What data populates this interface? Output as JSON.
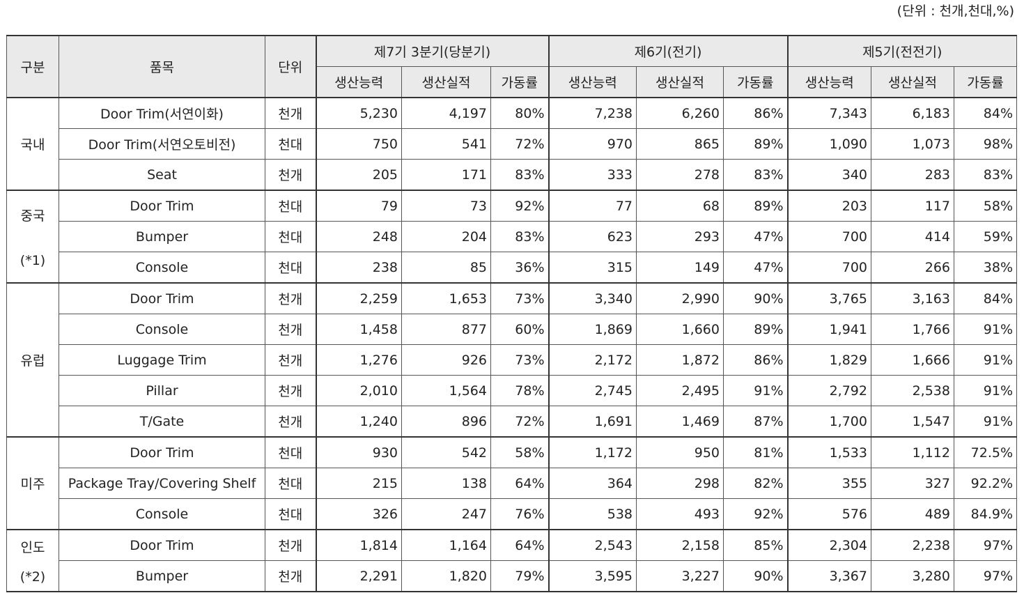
{
  "unit_note": "(단위 : 천개,천대,%)",
  "header": {
    "category": "구분",
    "item": "품목",
    "unit": "단위",
    "periods": [
      "제7기 3분기(당분기)",
      "제6기(전기)",
      "제5기(전전기)"
    ],
    "metrics": [
      "생산능력",
      "생산실적",
      "가동률"
    ]
  },
  "groups": [
    {
      "region_lines": [
        "국내"
      ],
      "rows": [
        {
          "item": "Door Trim(서연이화)",
          "unit": "천개",
          "p7": [
            "5,230",
            "4,197",
            "80%"
          ],
          "p6": [
            "7,238",
            "6,260",
            "86%"
          ],
          "p5": [
            "7,343",
            "6,183",
            "84%"
          ]
        },
        {
          "item": "Door Trim(서연오토비전)",
          "unit": "천대",
          "p7": [
            "750",
            "541",
            "72%"
          ],
          "p6": [
            "970",
            "865",
            "89%"
          ],
          "p5": [
            "1,090",
            "1,073",
            "98%"
          ]
        },
        {
          "item": "Seat",
          "unit": "천개",
          "p7": [
            "205",
            "171",
            "83%"
          ],
          "p6": [
            "333",
            "278",
            "83%"
          ],
          "p5": [
            "340",
            "283",
            "83%"
          ]
        }
      ]
    },
    {
      "region_lines": [
        "중국",
        "(*1)"
      ],
      "rows": [
        {
          "item": "Door Trim",
          "unit": "천대",
          "p7": [
            "79",
            "73",
            "92%"
          ],
          "p6": [
            "77",
            "68",
            "89%"
          ],
          "p5": [
            "203",
            "117",
            "58%"
          ]
        },
        {
          "item": "Bumper",
          "unit": "천대",
          "p7": [
            "248",
            "204",
            "83%"
          ],
          "p6": [
            "623",
            "293",
            "47%"
          ],
          "p5": [
            "700",
            "414",
            "59%"
          ]
        },
        {
          "item": "Console",
          "unit": "천대",
          "p7": [
            "238",
            "85",
            "36%"
          ],
          "p6": [
            "315",
            "149",
            "47%"
          ],
          "p5": [
            "700",
            "266",
            "38%"
          ]
        }
      ]
    },
    {
      "region_lines": [
        "유럽"
      ],
      "rows": [
        {
          "item": "Door Trim",
          "unit": "천개",
          "p7": [
            "2,259",
            "1,653",
            "73%"
          ],
          "p6": [
            "3,340",
            "2,990",
            "90%"
          ],
          "p5": [
            "3,765",
            "3,163",
            "84%"
          ]
        },
        {
          "item": "Console",
          "unit": "천개",
          "p7": [
            "1,458",
            "877",
            "60%"
          ],
          "p6": [
            "1,869",
            "1,660",
            "89%"
          ],
          "p5": [
            "1,941",
            "1,766",
            "91%"
          ]
        },
        {
          "item": "Luggage Trim",
          "unit": "천개",
          "p7": [
            "1,276",
            "926",
            "73%"
          ],
          "p6": [
            "2,172",
            "1,872",
            "86%"
          ],
          "p5": [
            "1,829",
            "1,666",
            "91%"
          ]
        },
        {
          "item": "Pillar",
          "unit": "천개",
          "p7": [
            "2,010",
            "1,564",
            "78%"
          ],
          "p6": [
            "2,745",
            "2,495",
            "91%"
          ],
          "p5": [
            "2,792",
            "2,538",
            "91%"
          ]
        },
        {
          "item": "T/Gate",
          "unit": "천개",
          "p7": [
            "1,240",
            "896",
            "72%"
          ],
          "p6": [
            "1,691",
            "1,469",
            "87%"
          ],
          "p5": [
            "1,700",
            "1,547",
            "91%"
          ]
        }
      ]
    },
    {
      "region_lines": [
        "미주"
      ],
      "rows": [
        {
          "item": "Door Trim",
          "unit": "천대",
          "p7": [
            "930",
            "542",
            "58%"
          ],
          "p6": [
            "1,172",
            "950",
            "81%"
          ],
          "p5": [
            "1,533",
            "1,112",
            "72.5%"
          ]
        },
        {
          "item": "Package Tray/Covering Shelf",
          "unit": "천대",
          "p7": [
            "215",
            "138",
            "64%"
          ],
          "p6": [
            "364",
            "298",
            "82%"
          ],
          "p5": [
            "355",
            "327",
            "92.2%"
          ]
        },
        {
          "item": "Console",
          "unit": "천대",
          "p7": [
            "326",
            "247",
            "76%"
          ],
          "p6": [
            "538",
            "493",
            "92%"
          ],
          "p5": [
            "576",
            "489",
            "84.9%"
          ]
        }
      ]
    },
    {
      "region_lines": [
        "인도",
        "(*2)"
      ],
      "rows": [
        {
          "item": "Door Trim",
          "unit": "천개",
          "p7": [
            "1,814",
            "1,164",
            "64%"
          ],
          "p6": [
            "2,543",
            "2,158",
            "85%"
          ],
          "p5": [
            "2,304",
            "2,238",
            "97%"
          ]
        },
        {
          "item": "Bumper",
          "unit": "천개",
          "p7": [
            "2,291",
            "1,820",
            "79%"
          ],
          "p6": [
            "3,595",
            "3,227",
            "90%"
          ],
          "p5": [
            "3,367",
            "3,280",
            "97%"
          ]
        }
      ]
    }
  ]
}
